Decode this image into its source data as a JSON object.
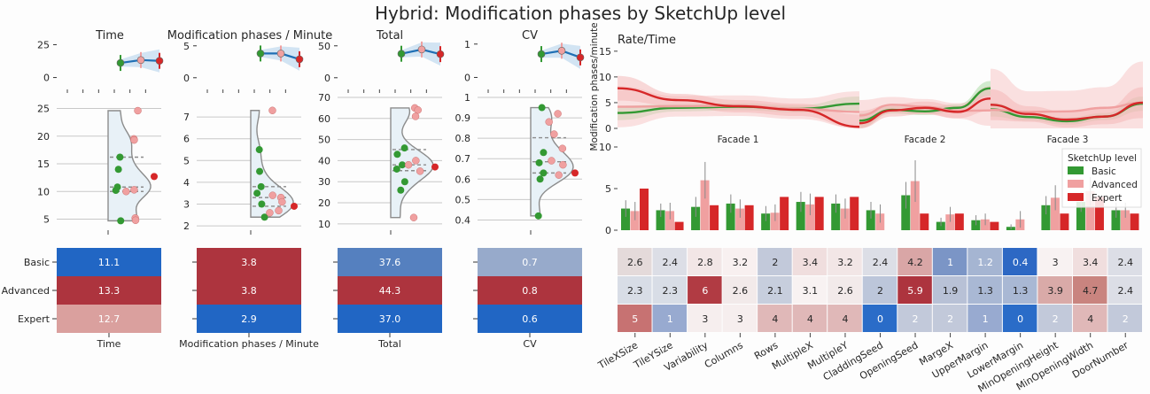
{
  "title": "Hybrid: Modification phases by SketchUp level",
  "colors": {
    "basic": "#339933",
    "advanced": "#f0a0a0",
    "expert": "#d62728",
    "trend": "#1f6fb4",
    "blue": "#2166c4",
    "red": "#ad343e"
  },
  "levels": [
    "Basic",
    "Advanced",
    "Expert"
  ],
  "legend": {
    "title": "SketchUp level",
    "items": [
      "Basic",
      "Advanced",
      "Expert"
    ]
  },
  "left_panels": [
    {
      "title": "Time",
      "xlabel": "Time",
      "trend": {
        "yticks": [
          0,
          25
        ],
        "ylim": [
          -5,
          28
        ],
        "means": [
          11.1,
          13.3,
          12.7
        ]
      },
      "dist": {
        "yticks": [
          5,
          10,
          15,
          20,
          25
        ],
        "ylim": [
          3,
          27
        ],
        "basic": [
          16.2,
          14.0,
          10.8,
          10.2,
          4.7
        ],
        "advanced": [
          24.6,
          19.5,
          19.3,
          10.3,
          10.0,
          5.2,
          4.8
        ],
        "expert": [
          12.7
        ]
      },
      "heat": {
        "labels": [
          "11.1",
          "13.3",
          "12.7"
        ],
        "colors": [
          "#2166c4",
          "#ad343e",
          "#daa09e"
        ]
      }
    },
    {
      "title": "Modification phases / Minute",
      "xlabel": "Modification phases / Minute",
      "trend": {
        "yticks": [
          0,
          5
        ],
        "ylim": [
          -1,
          5.8
        ],
        "means": [
          3.8,
          3.8,
          2.9
        ]
      },
      "dist": {
        "yticks": [
          2,
          3,
          4,
          5,
          6,
          7
        ],
        "ylim": [
          1.8,
          7.9
        ],
        "basic": [
          5.5,
          4.5,
          3.8,
          3.5,
          3.0,
          2.4
        ],
        "advanced": [
          7.3,
          3.4,
          3.3,
          3.1,
          2.7,
          2.6
        ],
        "expert": [
          2.9
        ]
      },
      "heat": {
        "labels": [
          "3.8",
          "3.8",
          "2.9"
        ],
        "colors": [
          "#ad343e",
          "#ad343e",
          "#2166c4"
        ]
      }
    },
    {
      "title": "Total",
      "xlabel": "Total",
      "trend": {
        "yticks": [
          0,
          50
        ],
        "ylim": [
          -10,
          58
        ],
        "means": [
          37.6,
          44.3,
          37.0
        ]
      },
      "dist": {
        "yticks": [
          10,
          20,
          30,
          40,
          50,
          60,
          70
        ],
        "ylim": [
          7,
          70
        ],
        "basic": [
          46,
          43,
          38,
          36,
          30,
          26
        ],
        "advanced": [
          65,
          64,
          61,
          40,
          38,
          35,
          13
        ],
        "expert": [
          37
        ]
      },
      "heat": {
        "labels": [
          "37.6",
          "44.3",
          "37.0"
        ],
        "colors": [
          "#5580bf",
          "#ad343e",
          "#2166c4"
        ]
      }
    },
    {
      "title": "CV",
      "xlabel": "CV",
      "trend": {
        "yticks": [
          0,
          1
        ],
        "ylim": [
          -0.2,
          1.1
        ],
        "means": [
          0.7,
          0.8,
          0.6
        ]
      },
      "dist": {
        "yticks": [
          0.4,
          0.5,
          0.6,
          0.7,
          0.8,
          0.9,
          1.0
        ],
        "ylim": [
          0.35,
          1.0
        ],
        "basic": [
          0.95,
          0.73,
          0.68,
          0.63,
          0.6,
          0.42
        ],
        "advanced": [
          0.92,
          0.88,
          0.82,
          0.75,
          0.69,
          0.67,
          0.62
        ],
        "expert": [
          0.63
        ]
      },
      "heat": {
        "labels": [
          "0.7",
          "0.8",
          "0.6"
        ],
        "colors": [
          "#97aacb",
          "#ad343e",
          "#2166c4"
        ]
      }
    }
  ],
  "rate": {
    "title": "Rate/Time",
    "ylabel": "Modification phases/minute",
    "yticks": [
      0,
      5,
      10,
      15
    ],
    "ylim": [
      0,
      16
    ],
    "facades": [
      "Facade 1",
      "Facade 2",
      "Facade 3"
    ],
    "curves": {
      "basic": [
        [
          3.0,
          4.0,
          4.2,
          3.8,
          4.8
        ],
        [
          1.5,
          3.6,
          3.3,
          4.0,
          7.8
        ],
        [
          3.7,
          2.2,
          1.4,
          2.3,
          4.8
        ]
      ],
      "advanced": [
        [
          4.2,
          4.3,
          4.4,
          3.8,
          3.2
        ],
        [
          2.5,
          4.6,
          4.2,
          3.4,
          3.5
        ],
        [
          3.6,
          3.2,
          3.3,
          4.0,
          5.0
        ]
      ],
      "expert": [
        [
          7.8,
          5.5,
          4.3,
          3.6,
          0.3
        ],
        [
          1.0,
          3.5,
          4.0,
          3.2,
          5.8
        ],
        [
          4.6,
          2.8,
          1.7,
          2.3,
          5.0
        ]
      ]
    }
  },
  "chart_data": {
    "type": "bar",
    "categories": [
      "TileXSize",
      "TileYSize",
      "Variability",
      "Columns",
      "Rows",
      "MultipleX",
      "MultipleY",
      "CladdingSeed",
      "OpeningSeed",
      "MargeX",
      "UpperMargin",
      "LowerMargin",
      "MinOpeningHeight",
      "MinOpeningWidth",
      "DoorNumber"
    ],
    "series": [
      {
        "name": "Basic",
        "values": [
          2.6,
          2.4,
          2.8,
          3.2,
          2,
          3.4,
          3.2,
          2.4,
          4.2,
          1,
          1.2,
          0.4,
          3,
          3.4,
          2.4
        ]
      },
      {
        "name": "Advanced",
        "values": [
          2.3,
          2.3,
          6,
          2.6,
          2.1,
          3.1,
          2.6,
          2,
          5.9,
          1.9,
          1.3,
          1.3,
          3.9,
          4.7,
          2.4
        ]
      },
      {
        "name": "Expert",
        "values": [
          5,
          1,
          3,
          3,
          4,
          4,
          4,
          0,
          2,
          2,
          1,
          0,
          2,
          4,
          2
        ]
      }
    ],
    "errors": {
      "Basic": [
        1.0,
        0.8,
        1.2,
        1.1,
        0.9,
        1.2,
        1.1,
        1.0,
        1.6,
        0.5,
        0.6,
        0.3,
        1.1,
        1.2,
        0.9
      ],
      "Advanced": [
        1.1,
        1.0,
        2.2,
        1.1,
        1.0,
        1.3,
        1.2,
        1.1,
        2.5,
        0.9,
        0.7,
        1.0,
        1.5,
        1.7,
        0.9
      ]
    },
    "yticks": [
      0,
      5,
      10
    ],
    "ylim": [
      0,
      10
    ],
    "heat_labels": [
      [
        "2.6",
        "2.4",
        "2.8",
        "3.2",
        "2",
        "3.4",
        "3.2",
        "2.4",
        "4.2",
        "1",
        "1.2",
        "0.4",
        "3",
        "3.4",
        "2.4"
      ],
      [
        "2.3",
        "2.3",
        "6",
        "2.6",
        "2.1",
        "3.1",
        "2.6",
        "2",
        "5.9",
        "1.9",
        "1.3",
        "1.3",
        "3.9",
        "4.7",
        "2.4"
      ],
      [
        "5",
        "1",
        "3",
        "3",
        "4",
        "4",
        "4",
        "0",
        "2",
        "2",
        "1",
        "0",
        "2",
        "4",
        "2"
      ]
    ]
  }
}
